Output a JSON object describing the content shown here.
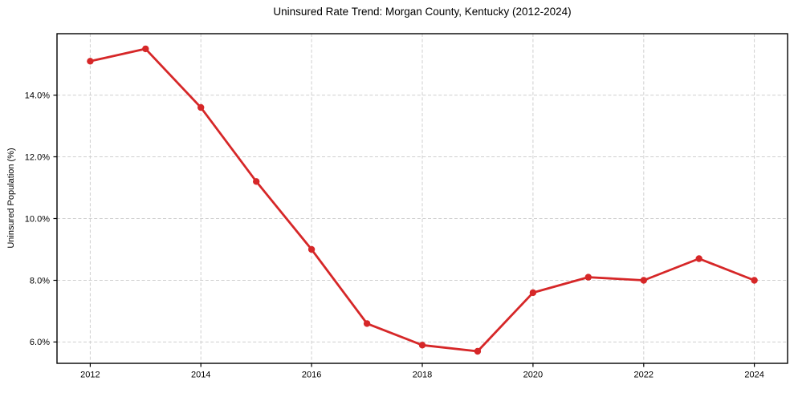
{
  "chart_data": {
    "type": "line",
    "title": "Uninsured Rate Trend: Morgan County, Kentucky (2012-2024)",
    "xlabel": "",
    "ylabel": "Uninsured Population (%)",
    "series_name": "Uninsured rate",
    "x": [
      2012,
      2013,
      2014,
      2015,
      2016,
      2017,
      2018,
      2019,
      2020,
      2021,
      2022,
      2023,
      2024
    ],
    "values": [
      15.1,
      15.5,
      13.6,
      11.2,
      9.0,
      6.6,
      5.9,
      5.7,
      7.6,
      8.1,
      8.0,
      8.7,
      8.0
    ],
    "xlim": [
      2011.4,
      2024.6
    ],
    "ylim": [
      5.31,
      15.99
    ],
    "xticks": [
      {
        "value": 2012,
        "label": "2012"
      },
      {
        "value": 2014,
        "label": "2014"
      },
      {
        "value": 2016,
        "label": "2016"
      },
      {
        "value": 2018,
        "label": "2018"
      },
      {
        "value": 2020,
        "label": "2020"
      },
      {
        "value": 2022,
        "label": "2022"
      },
      {
        "value": 2024,
        "label": "2024"
      }
    ],
    "yticks": [
      {
        "value": 6.0,
        "label": "6.0%"
      },
      {
        "value": 8.0,
        "label": "8.0%"
      },
      {
        "value": 10.0,
        "label": "10.0%"
      },
      {
        "value": 12.0,
        "label": "12.0%"
      },
      {
        "value": 14.0,
        "label": "14.0%"
      }
    ],
    "grid": true,
    "grid_style": "dashed",
    "legend_position": "none",
    "marker": "circle",
    "colors": {
      "line": "#d62728",
      "marker": "#d62728",
      "grid": "#cfcfcf",
      "axis": "#000000",
      "text": "#000000",
      "background": "#ffffff"
    }
  }
}
